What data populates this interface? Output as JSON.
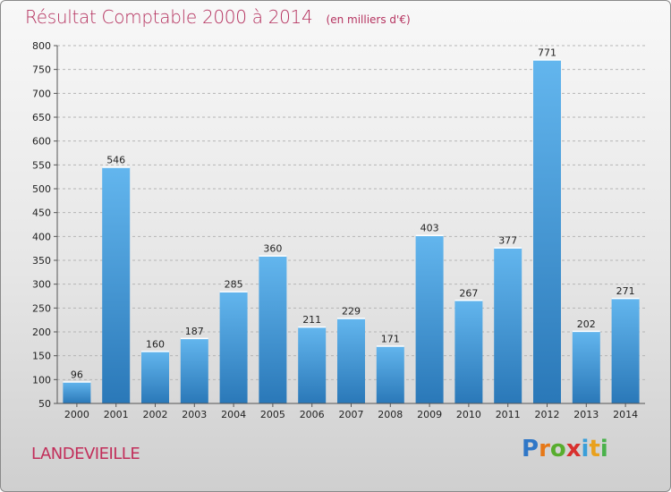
{
  "header": {
    "title": "Résultat Comptable 2000 à 2014",
    "subtitle": "(en milliers d'€)"
  },
  "footer": {
    "place": "LANDEVIEILLE",
    "logo": "Proxiti"
  },
  "colors": {
    "title": "#b5325f",
    "bar_light": "#63b6ee",
    "bar_dark": "#2a78b8"
  },
  "chart_data": {
    "type": "bar",
    "title": "Résultat Comptable 2000 à 2014",
    "subtitle": "(en milliers d'€)",
    "categories": [
      "2000",
      "2001",
      "2002",
      "2003",
      "2004",
      "2005",
      "2006",
      "2007",
      "2008",
      "2009",
      "2010",
      "2011",
      "2012",
      "2013",
      "2014"
    ],
    "values": [
      96,
      546,
      160,
      187,
      285,
      360,
      211,
      229,
      171,
      403,
      267,
      377,
      771,
      202,
      271
    ],
    "ylim": [
      50,
      800
    ],
    "yticks": [
      50,
      100,
      150,
      200,
      250,
      300,
      350,
      400,
      450,
      500,
      550,
      600,
      650,
      700,
      750,
      800
    ],
    "grid": true,
    "data_labels": true
  }
}
